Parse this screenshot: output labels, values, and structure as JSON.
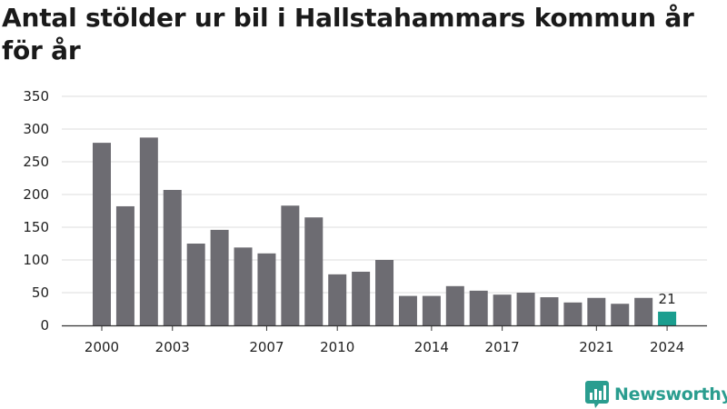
{
  "title": "Antal stölder ur bil i Hallstahammars kommun år för år",
  "brand": {
    "name": "Newsworthy",
    "logo_icon": "newsworthy-logo-icon",
    "color": "#2a9d8f"
  },
  "colors": {
    "bar": "#6d6c72",
    "highlight": "#1a9e8f",
    "grid": "#dcdcdc",
    "axis": "#333333"
  },
  "chart_data": {
    "type": "bar",
    "title": "Antal stölder ur bil i Hallstahammars kommun år för år",
    "xlabel": "",
    "ylabel": "",
    "ylim": [
      0,
      350
    ],
    "yticks": [
      0,
      50,
      100,
      150,
      200,
      250,
      300,
      350
    ],
    "xtick_labels": [
      "2000",
      "2003",
      "2007",
      "2010",
      "2014",
      "2017",
      "2021",
      "2024"
    ],
    "categories": [
      "2000",
      "2001",
      "2002",
      "2003",
      "2004",
      "2005",
      "2006",
      "2007",
      "2008",
      "2009",
      "2010",
      "2011",
      "2012",
      "2013",
      "2014",
      "2015",
      "2016",
      "2017",
      "2018",
      "2019",
      "2020",
      "2021",
      "2022",
      "2023",
      "2024"
    ],
    "values": [
      279,
      182,
      287,
      207,
      125,
      146,
      119,
      110,
      183,
      165,
      78,
      82,
      100,
      45,
      45,
      60,
      53,
      47,
      50,
      43,
      35,
      42,
      33,
      42,
      21
    ],
    "highlight_category": "2024",
    "data_labels": [
      {
        "category": "2024",
        "text": "21"
      }
    ],
    "grid": true,
    "legend": "none"
  }
}
